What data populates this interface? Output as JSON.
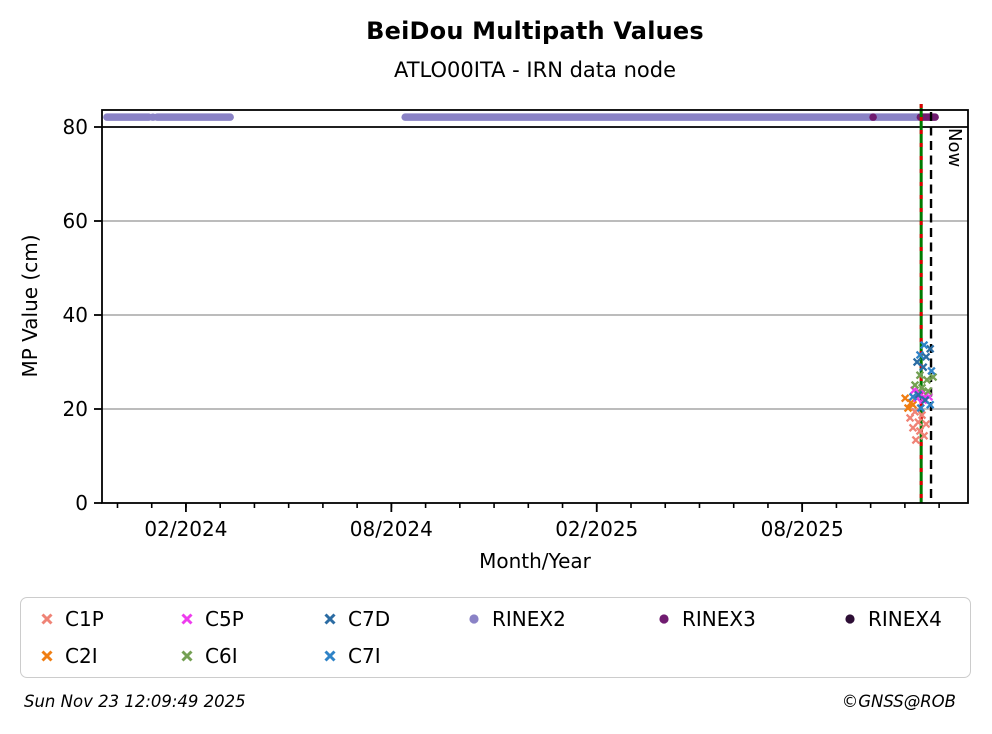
{
  "footer": {
    "timestamp": "Sun Nov 23 12:09:49 2025",
    "credit": "©GNSS@ROB"
  },
  "legend": {
    "items": [
      {
        "label": "C1P",
        "marker": "x",
        "color": "#ef8376",
        "row": 0,
        "col": 0
      },
      {
        "label": "C5P",
        "marker": "x",
        "color": "#ee3cee",
        "row": 0,
        "col": 1
      },
      {
        "label": "C7D",
        "marker": "x",
        "color": "#2b6ca3",
        "row": 0,
        "col": 2
      },
      {
        "label": "RINEX2",
        "marker": "circle",
        "color": "#8a82c6",
        "row": 0,
        "col": 3
      },
      {
        "label": "RINEX3",
        "marker": "circle",
        "color": "#701b70",
        "row": 0,
        "col": 4
      },
      {
        "label": "RINEX4",
        "marker": "circle",
        "color": "#2d0e35",
        "row": 0,
        "col": 5
      },
      {
        "label": "C2I",
        "marker": "x",
        "color": "#f07e12",
        "row": 1,
        "col": 0
      },
      {
        "label": "C6I",
        "marker": "x",
        "color": "#74a053",
        "row": 1,
        "col": 1
      },
      {
        "label": "C7I",
        "marker": "x",
        "color": "#2f83c7",
        "row": 1,
        "col": 2
      }
    ]
  },
  "chart_data": {
    "type": "scatter",
    "title": "BeiDou Multipath Values",
    "subtitle": "ATLO00ITA - IRN data node",
    "xlabel": "Month/Year",
    "ylabel": "MP Value (cm)",
    "ylim": [
      0,
      83.6
    ],
    "y_boundary_line": 80,
    "yticks": [
      0,
      20,
      40,
      60,
      80
    ],
    "grid": {
      "color": "#b2b2b2",
      "values": [
        20,
        40,
        60
      ]
    },
    "x_axis": {
      "min_year_frac": 2023.879,
      "max_year_frac": 2025.987,
      "minor_tick_start": 2023.9167,
      "minor_tick_months": 25,
      "major_ticks": [
        {
          "year_frac": 2024.0833,
          "label": "02/2024"
        },
        {
          "year_frac": 2024.5833,
          "label": "08/2024"
        },
        {
          "year_frac": 2025.0833,
          "label": "02/2025"
        },
        {
          "year_frac": 2025.5833,
          "label": "08/2025"
        }
      ]
    },
    "now_line": {
      "year_frac": 2025.897,
      "label": "Now",
      "color": "#000000",
      "style": "dashed"
    },
    "event_line": {
      "year_frac": 2025.873,
      "line_color": "#007a00",
      "overlay_dash_color": "#dd0000"
    },
    "availability_value": 82.1,
    "rinex2": {
      "color": "#8a82c6",
      "segments": [
        [
          2023.891,
          2023.993
        ],
        [
          2024.013,
          2024.191
        ],
        [
          2024.617,
          2025.866
        ]
      ],
      "points": [
        2024.003
      ]
    },
    "rinex3": {
      "color": "#701b70",
      "segments": [
        [
          2025.871,
          2025.907
        ]
      ],
      "points": [
        2025.756
      ]
    },
    "rinex4": {
      "color": "#2d0e35",
      "segments": [],
      "points": []
    },
    "series": [
      {
        "name": "C1P",
        "color": "#ef8376",
        "marker": "x",
        "points": [
          [
            2025.858,
            19.4
          ],
          [
            2025.875,
            18.7
          ],
          [
            2025.846,
            18.1
          ],
          [
            2025.866,
            17.2
          ],
          [
            2025.885,
            16.8
          ],
          [
            2025.853,
            16.0
          ],
          [
            2025.87,
            15.3
          ],
          [
            2025.88,
            14.3
          ],
          [
            2025.86,
            13.4
          ]
        ]
      },
      {
        "name": "C2I",
        "color": "#f07e12",
        "marker": "x",
        "points": [
          [
            2025.834,
            22.3
          ],
          [
            2025.848,
            21.3
          ],
          [
            2025.853,
            20.9
          ],
          [
            2025.841,
            20.2
          ]
        ]
      },
      {
        "name": "C5P",
        "color": "#ee3cee",
        "marker": "x",
        "points": [
          [
            2025.856,
            24.0
          ],
          [
            2025.87,
            23.4
          ],
          [
            2025.885,
            23.0
          ],
          [
            2025.892,
            22.6
          ],
          [
            2025.863,
            22.3
          ],
          [
            2025.878,
            21.9
          ]
        ]
      },
      {
        "name": "C6I",
        "color": "#74a053",
        "marker": "x",
        "points": [
          [
            2025.87,
            27.2
          ],
          [
            2025.902,
            26.8
          ],
          [
            2025.887,
            26.2
          ],
          [
            2025.858,
            25.1
          ],
          [
            2025.875,
            24.5
          ],
          [
            2025.89,
            23.8
          ]
        ]
      },
      {
        "name": "C7D",
        "color": "#2b6ca3",
        "marker": "x",
        "points": [
          [
            2025.895,
            32.8
          ],
          [
            2025.885,
            31.1
          ],
          [
            2025.863,
            30.0
          ],
          [
            2025.878,
            28.9
          ],
          [
            2025.866,
            23.0
          ],
          [
            2025.883,
            21.9
          ]
        ]
      },
      {
        "name": "C7I",
        "color": "#2f83c7",
        "marker": "x",
        "points": [
          [
            2025.88,
            33.6
          ],
          [
            2025.87,
            31.5
          ],
          [
            2025.898,
            28.1
          ],
          [
            2025.853,
            22.6
          ],
          [
            2025.895,
            20.9
          ],
          [
            2025.872,
            20.2
          ]
        ]
      }
    ]
  }
}
